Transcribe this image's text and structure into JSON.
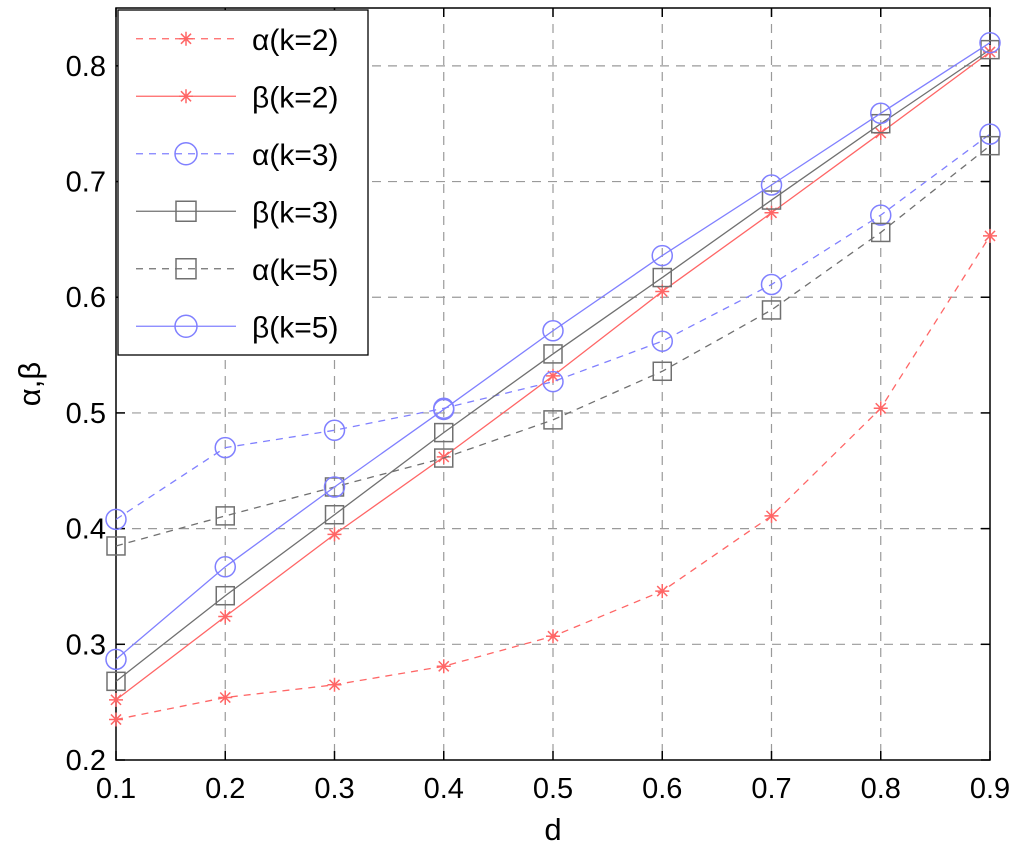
{
  "chart_data": {
    "type": "line",
    "xlabel": "d",
    "ylabel": "α,β",
    "xlim": [
      0.1,
      0.9
    ],
    "ylim": [
      0.2,
      0.85
    ],
    "xticks": [
      "0.1",
      "0.2",
      "0.3",
      "0.4",
      "0.5",
      "0.6",
      "0.7",
      "0.8",
      "0.9"
    ],
    "yticks": [
      "0.2",
      "0.3",
      "0.4",
      "0.5",
      "0.6",
      "0.7",
      "0.8"
    ],
    "grid": true,
    "legend_position": "top-left",
    "x": [
      0.1,
      0.2,
      0.3,
      0.4,
      0.5,
      0.6,
      0.7,
      0.8,
      0.9
    ],
    "series": [
      {
        "name": "α(k=2)",
        "color": "#ff6666",
        "line_style": "dashed",
        "marker": "asterisk",
        "values": [
          0.235,
          0.254,
          0.265,
          0.281,
          0.307,
          0.346,
          0.411,
          0.504,
          0.653
        ]
      },
      {
        "name": "β(k=2)",
        "color": "#ff6666",
        "line_style": "solid",
        "marker": "asterisk",
        "values": [
          0.252,
          0.324,
          0.395,
          0.462,
          0.532,
          0.605,
          0.673,
          0.742,
          0.812
        ]
      },
      {
        "name": "α(k=3)",
        "color": "#8080ff",
        "line_style": "dashed",
        "marker": "circle",
        "values": [
          0.408,
          0.47,
          0.485,
          0.504,
          0.527,
          0.562,
          0.611,
          0.671,
          0.741
        ]
      },
      {
        "name": "β(k=3)",
        "color": "#707070",
        "line_style": "solid",
        "marker": "square",
        "values": [
          0.268,
          0.342,
          0.412,
          0.483,
          0.551,
          0.617,
          0.684,
          0.75,
          0.814
        ]
      },
      {
        "name": "α(k=5)",
        "color": "#707070",
        "line_style": "dashed",
        "marker": "square",
        "values": [
          0.385,
          0.411,
          0.436,
          0.461,
          0.494,
          0.536,
          0.589,
          0.656,
          0.731
        ]
      },
      {
        "name": "β(k=5)",
        "color": "#8080ff",
        "line_style": "solid",
        "marker": "circle",
        "values": [
          0.287,
          0.367,
          0.436,
          0.503,
          0.571,
          0.636,
          0.697,
          0.759,
          0.82
        ]
      }
    ]
  }
}
